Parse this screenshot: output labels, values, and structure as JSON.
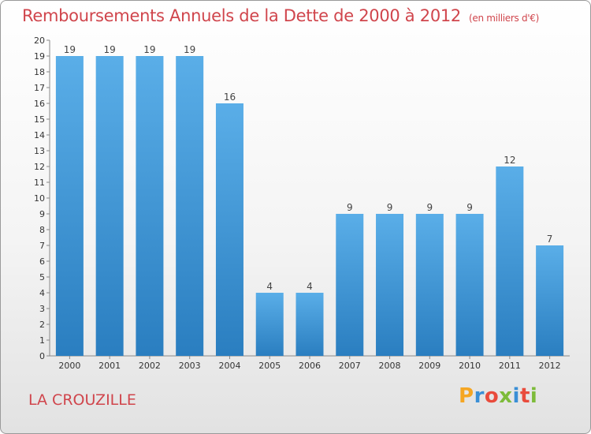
{
  "header": {
    "title": "Remboursements Annuels de la Dette de 2000 à 2012",
    "unit": "(en milliers d'€)"
  },
  "footer": {
    "commune": "LA CROUZILLE",
    "logo": "Proxiti"
  },
  "colors": {
    "bar_top": "#5aaee8",
    "bar_bottom": "#2a7ec0",
    "title": "#d0454c",
    "logo_letters": [
      "#f5a623",
      "#3a8fd6",
      "#e94b3c",
      "#7dbb3a",
      "#3a8fd6",
      "#e94b3c",
      "#7dbb3a"
    ]
  },
  "chart_data": {
    "type": "bar",
    "title": "Remboursements Annuels de la Dette de 2000 à 2012",
    "unit": "(en milliers d'€)",
    "categories": [
      "2000",
      "2001",
      "2002",
      "2003",
      "2004",
      "2005",
      "2006",
      "2007",
      "2008",
      "2009",
      "2010",
      "2011",
      "2012"
    ],
    "values": [
      19,
      19,
      19,
      19,
      16,
      4,
      4,
      9,
      9,
      9,
      9,
      12,
      7
    ],
    "ylim": [
      0,
      20
    ],
    "yticks": [
      0,
      1,
      2,
      3,
      4,
      5,
      6,
      7,
      8,
      9,
      10,
      11,
      12,
      13,
      14,
      15,
      16,
      17,
      18,
      19,
      20
    ],
    "grid": false,
    "legend": "none"
  }
}
